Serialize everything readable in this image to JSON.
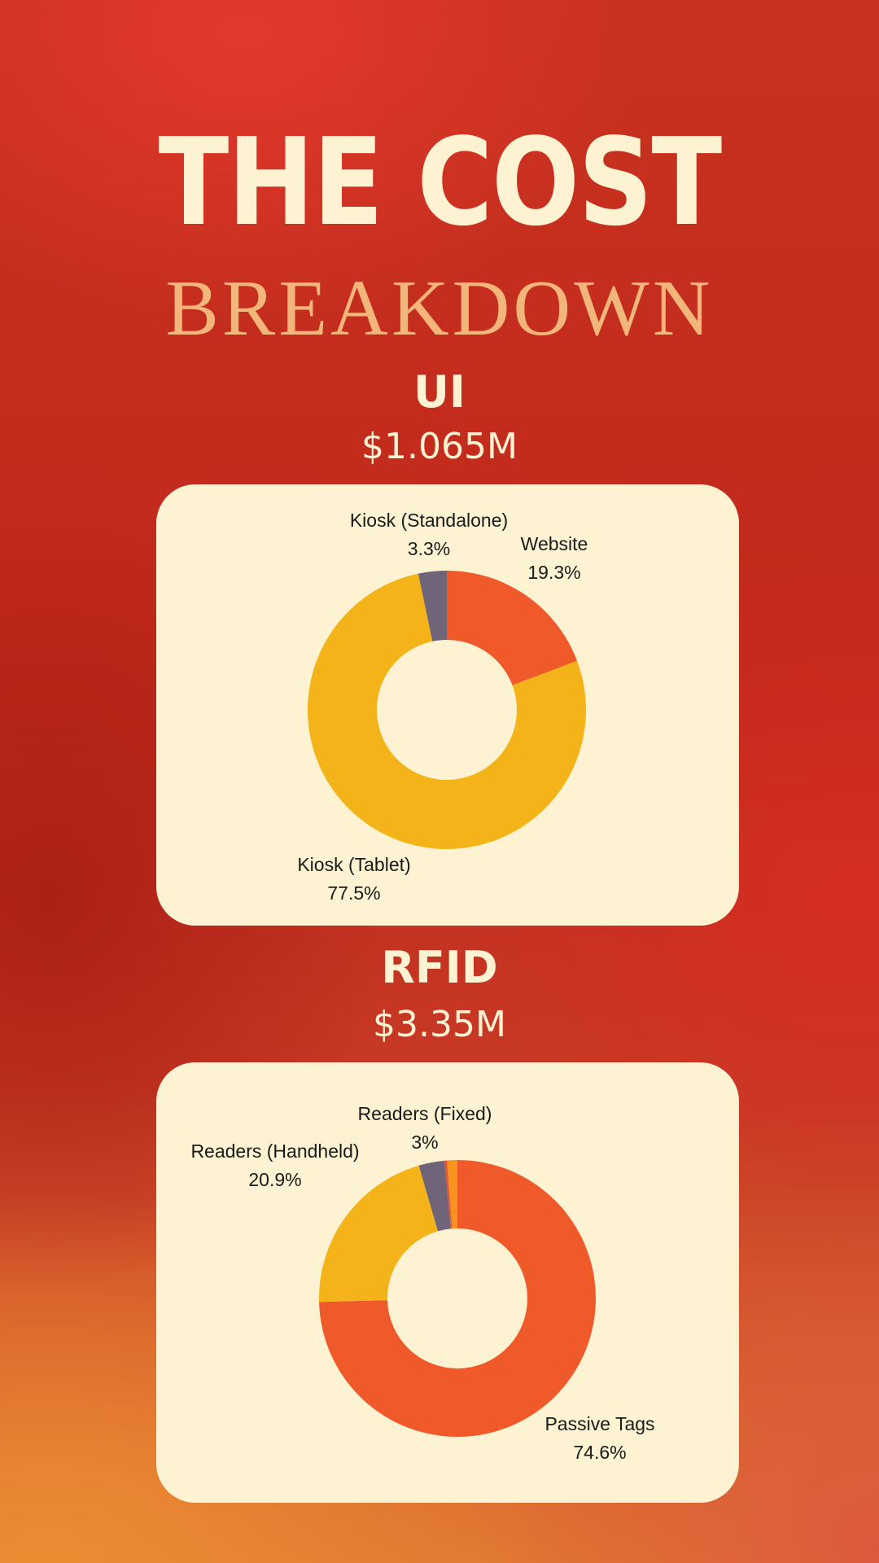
{
  "header": {
    "title": "THE COST",
    "subtitle": "BREAKDOWN"
  },
  "sections": [
    {
      "name": "UI",
      "total": "$1.065M"
    },
    {
      "name": "RFID",
      "total": "$3.35M"
    }
  ],
  "colors": {
    "background": "#c8321f",
    "card": "#fdf3d2",
    "title": "#fdf3d2",
    "subtitle": "#f2b57a",
    "orange": "#f05a2a",
    "yellow": "#f4b318",
    "gray": "#6f6478",
    "light_orange": "#f7931e"
  },
  "chart_data": [
    {
      "type": "pie",
      "title": "UI",
      "slices": [
        {
          "label": "Website",
          "pct_text": "19.3%",
          "value": 19.3,
          "color": "#f05a2a"
        },
        {
          "label": "Kiosk (Tablet)",
          "pct_text": "77.5%",
          "value": 77.5,
          "color": "#f4b318"
        },
        {
          "label": "Kiosk (Standalone)",
          "pct_text": "3.3%",
          "value": 3.3,
          "color": "#6f6478"
        }
      ]
    },
    {
      "type": "pie",
      "title": "RFID",
      "slices": [
        {
          "label": "Passive Tags",
          "pct_text": "74.6%",
          "value": 74.6,
          "color": "#f05a2a"
        },
        {
          "label": "Readers (Handheld)",
          "pct_text": "20.9%",
          "value": 20.9,
          "color": "#f4b318"
        },
        {
          "label": "Readers (Fixed)",
          "pct_text": "3%",
          "value": 3.0,
          "color": "#6f6478"
        },
        {
          "label": "",
          "pct_text": "",
          "value": 0.3,
          "color": "#e2533a"
        },
        {
          "label": "",
          "pct_text": "",
          "value": 1.2,
          "color": "#f7931e"
        }
      ]
    }
  ]
}
